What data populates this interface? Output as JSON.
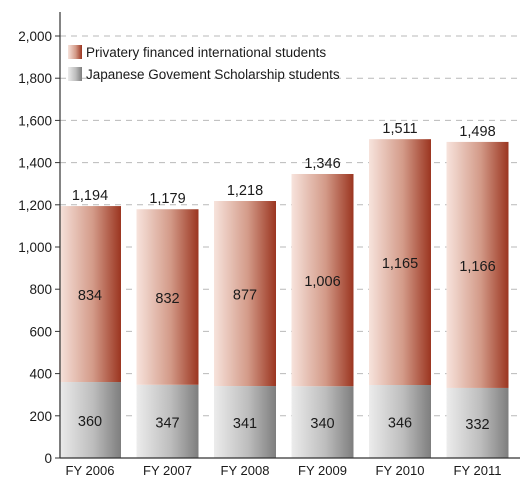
{
  "chart_data": {
    "type": "bar",
    "stacked": true,
    "categories": [
      "FY 2006",
      "FY 2007",
      "FY 2008",
      "FY 2009",
      "FY 2010",
      "FY 2011"
    ],
    "series": [
      {
        "name": "Japanese Govement Scholarship students",
        "values": [
          360,
          347,
          341,
          340,
          346,
          332
        ],
        "value_labels": [
          "360",
          "347",
          "341",
          "340",
          "346",
          "332"
        ],
        "color": "#8f8f8f"
      },
      {
        "name": "Privatery financed international students",
        "values": [
          834,
          832,
          877,
          1006,
          1165,
          1166
        ],
        "value_labels": [
          "834",
          "832",
          "877",
          "1,006",
          "1,165",
          "1,166"
        ],
        "color": "#a9442c"
      }
    ],
    "totals": [
      1194,
      1179,
      1218,
      1346,
      1511,
      1498
    ],
    "total_labels": [
      "1,194",
      "1,179",
      "1,218",
      "1,346",
      "1,511",
      "1,498"
    ],
    "ylim": [
      0,
      2000
    ],
    "yticks": [
      0,
      200,
      400,
      600,
      800,
      1000,
      1200,
      1400,
      1600,
      1800,
      2000
    ],
    "ytick_labels": [
      "0",
      "200",
      "400",
      "600",
      "800",
      "1,000",
      "1,200",
      "1,400",
      "1,600",
      "1,800",
      "2,000"
    ],
    "grid": "horizontal dashed",
    "legend_position": "top-left",
    "legend_order": [
      1,
      0
    ]
  }
}
